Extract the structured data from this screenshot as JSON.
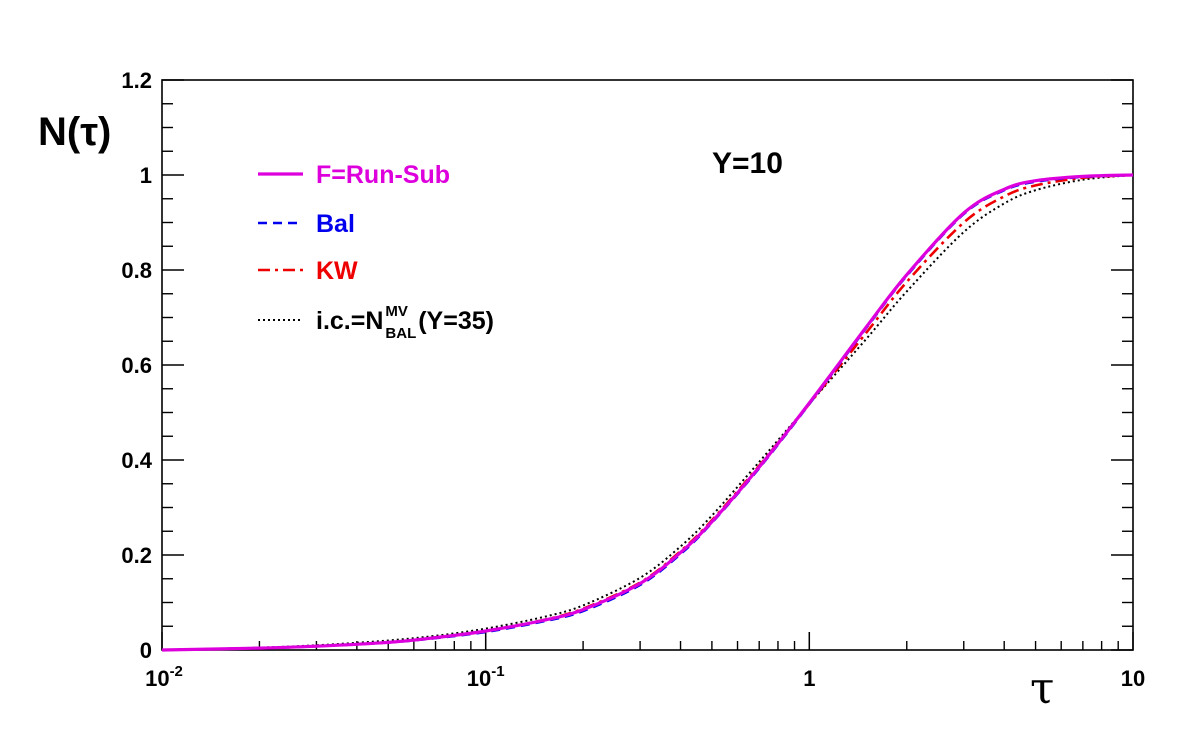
{
  "chart_data": {
    "type": "line",
    "xscale": "log",
    "xlim": [
      0.01,
      10
    ],
    "ylim": [
      0,
      1.2
    ],
    "grid": false,
    "xlabel": "τ",
    "ylabel": "N(τ)",
    "annotation": "Y=10",
    "legend_position": "top-left",
    "x_tick_labels": [
      {
        "value": 0.01,
        "base": "10",
        "exp": "-2"
      },
      {
        "value": 0.1,
        "base": "10",
        "exp": "-1"
      },
      {
        "value": 1,
        "base": "1",
        "exp": ""
      },
      {
        "value": 10,
        "base": "10",
        "exp": ""
      }
    ],
    "y_tick_labels": [
      {
        "value": 0,
        "text": "0"
      },
      {
        "value": 0.2,
        "text": "0.2"
      },
      {
        "value": 0.4,
        "text": "0.4"
      },
      {
        "value": 0.6,
        "text": "0.6"
      },
      {
        "value": 0.8,
        "text": "0.8"
      },
      {
        "value": 1,
        "text": "1"
      },
      {
        "value": 1.2,
        "text": "1.2"
      }
    ],
    "x": [
      0.01,
      0.02,
      0.03,
      0.05,
      0.07,
      0.1,
      0.15,
      0.2,
      0.3,
      0.4,
      0.5,
      0.7,
      1.0,
      1.5,
      2.0,
      3.0,
      4.0,
      5.0,
      7.0,
      10.0
    ],
    "series": [
      {
        "name": "F=Run-Sub",
        "legend": "F=Run-Sub",
        "legend_sub": "",
        "legend_sup": "",
        "legend_tail": "",
        "color": "#dd00dd",
        "dash": "",
        "width": 3.2,
        "values": [
          0.0,
          0.004,
          0.008,
          0.016,
          0.026,
          0.04,
          0.062,
          0.085,
          0.14,
          0.205,
          0.27,
          0.385,
          0.52,
          0.68,
          0.79,
          0.92,
          0.97,
          0.988,
          0.997,
          1.0
        ]
      },
      {
        "name": "Bal",
        "legend": "Bal",
        "legend_sub": "",
        "legend_sup": "",
        "legend_tail": "",
        "color": "#0000ee",
        "dash": "9,6",
        "width": 2.6,
        "values": [
          0.0,
          0.004,
          0.008,
          0.016,
          0.025,
          0.038,
          0.06,
          0.082,
          0.137,
          0.202,
          0.268,
          0.383,
          0.518,
          0.678,
          0.788,
          0.918,
          0.968,
          0.986,
          0.996,
          1.0
        ]
      },
      {
        "name": "KW",
        "legend": "KW",
        "legend_sub": "",
        "legend_sup": "",
        "legend_tail": "",
        "color": "#ee0000",
        "dash": "12,5,3,5",
        "width": 2.6,
        "values": [
          0.0,
          0.004,
          0.008,
          0.016,
          0.026,
          0.04,
          0.063,
          0.087,
          0.142,
          0.208,
          0.273,
          0.388,
          0.518,
          0.668,
          0.775,
          0.9,
          0.955,
          0.978,
          0.994,
          1.0
        ]
      },
      {
        "name": "i.c.=N_BAL^MV(Y=35)",
        "legend": "i.c.=N",
        "legend_sub": "BAL",
        "legend_sup": "MV",
        "legend_tail": "(Y=35)",
        "color": "#000000",
        "dash": "2,3",
        "width": 2.0,
        "values": [
          0.0,
          0.005,
          0.01,
          0.02,
          0.03,
          0.045,
          0.069,
          0.094,
          0.152,
          0.218,
          0.283,
          0.396,
          0.518,
          0.655,
          0.755,
          0.88,
          0.94,
          0.968,
          0.99,
          1.0
        ]
      }
    ]
  }
}
